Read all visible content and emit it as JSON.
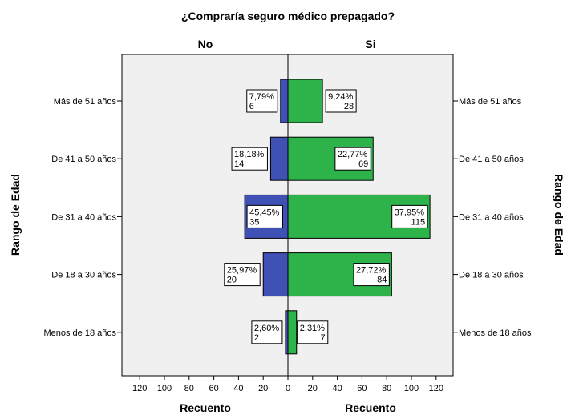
{
  "chart_data": {
    "type": "bar",
    "orientation": "horizontal",
    "layout": "population-pyramid",
    "title": "¿Compraría seguro médico prepagado?",
    "left_panel_title": "No",
    "right_panel_title": "Si",
    "xlabel": "Recuento",
    "ylabel": "Rango de Edad",
    "categories": [
      "Más de 51 años",
      "De 41 a 50 años",
      "De 31 a 40 años",
      "De 18 a 30 años",
      "Menos de 18 años"
    ],
    "xlim": [
      0,
      130
    ],
    "xticks": [
      0,
      20,
      40,
      60,
      80,
      100,
      120
    ],
    "xtick_labels": [
      "0",
      "20",
      "40",
      "60",
      "80",
      "100",
      "120"
    ],
    "grid": false,
    "series": [
      {
        "name": "No",
        "side": "left",
        "color": "#3f51b5",
        "values": [
          6,
          14,
          35,
          20,
          2
        ],
        "percent_labels": [
          "7,79%",
          "18,18%",
          "45,45%",
          "25,97%",
          "2,60%"
        ],
        "count_labels": [
          "6",
          "14",
          "35",
          "20",
          "2"
        ]
      },
      {
        "name": "Si",
        "side": "right",
        "color": "#2db34a",
        "values": [
          28,
          69,
          115,
          84,
          7
        ],
        "percent_labels": [
          "9,24%",
          "22,77%",
          "37,95%",
          "27,72%",
          "2,31%"
        ],
        "count_labels": [
          "28",
          "69",
          "115",
          "84",
          "7"
        ]
      }
    ]
  }
}
